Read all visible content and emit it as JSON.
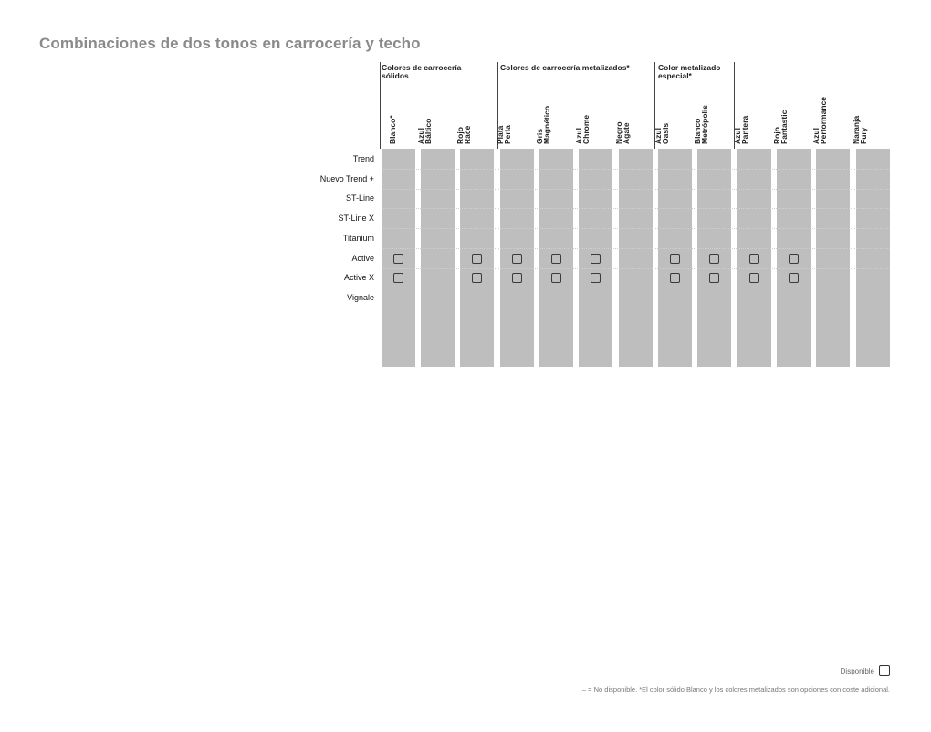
{
  "title": "Combinaciones de dos tonos en carrocería y techo",
  "groups": [
    {
      "label_lines": [
        "Colores de carrocería",
        "sólidos"
      ]
    },
    {
      "label_lines": [
        "Colores de carrocería metalizados*"
      ]
    },
    {
      "label_lines": [
        "Color metalizado",
        "especial*"
      ]
    }
  ],
  "columns": [
    {
      "lines": [
        "Blanco*"
      ]
    },
    {
      "lines": [
        "Azul",
        "Báltico"
      ]
    },
    {
      "lines": [
        "Rojo",
        "Race"
      ]
    },
    {
      "lines": [
        "Plata",
        "Perla"
      ]
    },
    {
      "lines": [
        "Gris",
        "Magnético"
      ]
    },
    {
      "lines": [
        "Azul",
        "Chrome"
      ]
    },
    {
      "lines": [
        "Negro",
        "Agate"
      ]
    },
    {
      "lines": [
        "Azul",
        "Oasis"
      ]
    },
    {
      "lines": [
        "Blanco",
        "Metrópolis"
      ]
    },
    {
      "lines": [
        "Azul",
        "Pantera"
      ]
    },
    {
      "lines": [
        "Rojo",
        "Fantastic"
      ]
    },
    {
      "lines": [
        "Azul",
        "Performance"
      ]
    },
    {
      "lines": [
        "Naranja",
        "Fury"
      ]
    }
  ],
  "rows": [
    {
      "label": "Trend",
      "available": []
    },
    {
      "label": "Nuevo Trend +",
      "available": []
    },
    {
      "label": "ST-Line",
      "available": []
    },
    {
      "label": "ST-Line X",
      "available": []
    },
    {
      "label": "Titanium",
      "available": []
    },
    {
      "label": "Active",
      "available": [
        0,
        2,
        3,
        4,
        5,
        7,
        8,
        9,
        10
      ]
    },
    {
      "label": "Active X",
      "available": [
        0,
        2,
        3,
        4,
        5,
        7,
        8,
        9,
        10
      ]
    },
    {
      "label": "Vignale",
      "available": []
    }
  ],
  "legend": {
    "label": "Disponible",
    "icon": "available-box-icon"
  },
  "footnote": "– = No disponible. *El color sólido Blanco y los colores metalizados son opciones con coste adicional.",
  "colors": {
    "title": "#8a8a8a",
    "column_fill": "#bebebe",
    "text": "#1a1a1a"
  }
}
